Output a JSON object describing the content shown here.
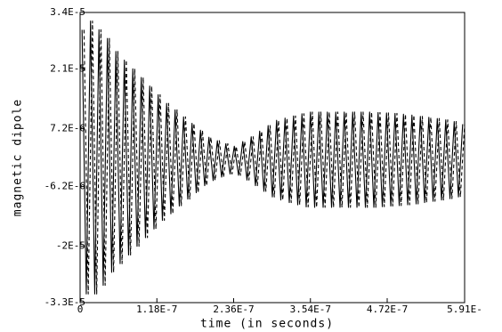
{
  "chart_data": {
    "type": "line",
    "x_label": "time (in seconds)",
    "y_label": "magnetic dipole",
    "xlim": [
      0,
      5.91e-07
    ],
    "ylim": [
      -3.3e-05,
      3.4e-05
    ],
    "xticks": [
      0,
      {
        "value": 1.18e-07,
        "label": "1.18E-7"
      },
      {
        "value": 2.36e-07,
        "label": "2.36E-7"
      },
      {
        "value": 3.54e-07,
        "label": "3.54E-7"
      },
      {
        "value": 4.72e-07,
        "label": "4.72E-7"
      },
      {
        "value": 5.91e-07,
        "label": "5.91E-"
      }
    ],
    "yticks": [
      {
        "value": 3.4e-05,
        "label": "3.4E-5"
      },
      {
        "value": 2.1e-05,
        "label": "2.1E-5"
      },
      {
        "value": 7.2e-06,
        "label": "7.2E-6"
      },
      {
        "value": -6.2e-06,
        "label": "-6.2E-6"
      },
      {
        "value": -2e-05,
        "label": "-2E-5"
      },
      {
        "value": -3.3e-05,
        "label": "-3.3E-5"
      }
    ],
    "grid": false,
    "series": [
      {
        "color": "#000000",
        "line_style": "solid",
        "x": [
          3e-09,
          9.5e-09,
          1.6e-08,
          2.25e-08,
          2.9e-08,
          3.55e-08,
          4.2e-08,
          4.85e-08,
          5.5e-08,
          6.15e-08,
          6.8e-08,
          7.45e-08,
          8.1e-08,
          8.75e-08,
          9.4e-08,
          1.005e-07,
          1.07e-07,
          1.135e-07,
          1.2e-07,
          1.265e-07,
          1.33e-07,
          1.395e-07,
          1.46e-07,
          1.525e-07,
          1.59e-07,
          1.655e-07,
          1.72e-07,
          1.785e-07,
          1.85e-07,
          1.915e-07,
          1.98e-07,
          2.045e-07,
          2.11e-07,
          2.175e-07,
          2.24e-07,
          2.305e-07,
          2.37e-07,
          2.435e-07,
          2.5e-07,
          2.565e-07,
          2.63e-07,
          2.695e-07,
          2.76e-07,
          2.825e-07,
          2.89e-07,
          2.955e-07,
          3.02e-07,
          3.085e-07,
          3.15e-07,
          3.215e-07,
          3.28e-07,
          3.345e-07,
          3.41e-07,
          3.475e-07,
          3.54e-07,
          3.605e-07,
          3.67e-07,
          3.735e-07,
          3.8e-07,
          3.865e-07,
          3.93e-07,
          3.995e-07,
          4.06e-07,
          4.125e-07,
          4.19e-07,
          4.255e-07,
          4.32e-07,
          4.385e-07,
          4.45e-07,
          4.515e-07,
          4.58e-07,
          4.645e-07,
          4.71e-07,
          4.775e-07,
          4.84e-07,
          4.905e-07,
          4.97e-07,
          5.035e-07,
          5.1e-07,
          5.165e-07,
          5.23e-07,
          5.295e-07,
          5.36e-07,
          5.425e-07,
          5.49e-07,
          5.555e-07,
          5.62e-07,
          5.685e-07,
          5.75e-07,
          5.815e-07,
          5.88e-07
        ],
        "values": [
          3e-05,
          -3.1e-05,
          3.2e-05,
          -3.1e-05,
          3e-05,
          -2.9e-05,
          2.8e-05,
          -2.6e-05,
          2.5e-05,
          -2.4e-05,
          2.3e-05,
          -2.2e-05,
          2.1e-05,
          -2e-05,
          1.9e-05,
          -1.8e-05,
          1.7e-05,
          -1.6e-05,
          1.5e-05,
          -1.4e-05,
          1.3e-05,
          -1.25e-05,
          1.15e-05,
          -1.07e-05,
          9.9e-06,
          -9.1e-06,
          8.4e-06,
          -7.6e-06,
          6.8e-06,
          -6e-06,
          5.2e-06,
          -4.8e-06,
          4.4e-06,
          -4e-06,
          3.7e-06,
          -3.3e-06,
          3.1e-06,
          -3.6e-06,
          4.2e-06,
          -4.7e-06,
          5.3e-06,
          -6e-06,
          6.6e-06,
          -7.3e-06,
          7.9e-06,
          -8.6e-06,
          9.1e-06,
          -9.3e-06,
          9.6e-06,
          -9.9e-06,
          1.01e-05,
          -1.04e-05,
          1.06e-05,
          -1.09e-05,
          1.1e-05,
          -1.1e-05,
          1.1e-05,
          -1.1e-05,
          1.1e-05,
          -1.1e-05,
          1.1e-05,
          -1.1e-05,
          1.1e-05,
          -1.1e-05,
          1.1e-05,
          -1.1e-05,
          1.1e-05,
          -1.1e-05,
          1.1e-05,
          -1.1e-05,
          1.09e-05,
          -1.085e-05,
          1.08e-05,
          -1.07e-05,
          1.07e-05,
          -1.06e-05,
          1.05e-05,
          -1.04e-05,
          1.03e-05,
          -1.02e-05,
          1e-05,
          -9.9e-06,
          9.8e-06,
          -9.6e-06,
          9.5e-06,
          -9.3e-06,
          9.2e-06,
          -9e-06,
          8.8e-06,
          -8.6e-06,
          8.2e-06
        ]
      },
      {
        "color": "#000000",
        "line_style": "dashed",
        "x": [
          6e-09,
          1.25e-08,
          1.9e-08,
          2.55e-08,
          3.2e-08,
          3.85e-08,
          4.5e-08,
          5.15e-08,
          5.8e-08,
          6.45e-08,
          7.1e-08,
          7.75e-08,
          8.4e-08,
          9.05e-08,
          9.7e-08,
          1.035e-07,
          1.1e-07,
          1.165e-07,
          1.23e-07,
          1.295e-07,
          1.36e-07,
          1.425e-07,
          1.49e-07,
          1.555e-07,
          1.62e-07,
          1.685e-07,
          1.75e-07,
          1.815e-07,
          1.88e-07,
          1.945e-07,
          2.01e-07,
          2.075e-07,
          2.14e-07,
          2.205e-07,
          2.27e-07,
          2.335e-07,
          2.4e-07,
          2.465e-07,
          2.53e-07,
          2.595e-07,
          2.66e-07,
          2.725e-07,
          2.79e-07,
          2.855e-07,
          2.92e-07,
          2.985e-07,
          3.05e-07,
          3.115e-07,
          3.18e-07,
          3.245e-07,
          3.31e-07,
          3.375e-07,
          3.44e-07,
          3.505e-07,
          3.57e-07,
          3.635e-07,
          3.7e-07,
          3.765e-07,
          3.83e-07,
          3.895e-07,
          3.96e-07,
          4.025e-07,
          4.09e-07,
          4.155e-07,
          4.22e-07,
          4.285e-07,
          4.35e-07,
          4.415e-07,
          4.48e-07,
          4.545e-07,
          4.61e-07,
          4.675e-07,
          4.74e-07,
          4.805e-07,
          4.87e-07,
          4.935e-07,
          5e-07,
          5.065e-07,
          5.13e-07,
          5.195e-07,
          5.26e-07,
          5.325e-07,
          5.39e-07,
          5.455e-07,
          5.52e-07,
          5.585e-07,
          5.65e-07,
          5.715e-07,
          5.78e-07,
          5.845e-07,
          5.91e-07
        ],
        "values": [
          3e-05,
          -3.1e-05,
          3.2e-05,
          -3.1e-05,
          3e-05,
          -2.9e-05,
          2.8e-05,
          -2.6e-05,
          2.5e-05,
          -2.4e-05,
          2.3e-05,
          -2.2e-05,
          2.1e-05,
          -2e-05,
          1.9e-05,
          -1.8e-05,
          1.7e-05,
          -1.6e-05,
          1.5e-05,
          -1.4e-05,
          1.3e-05,
          -1.25e-05,
          1.15e-05,
          -1.07e-05,
          9.9e-06,
          -9.1e-06,
          8.4e-06,
          -7.6e-06,
          6.8e-06,
          -6e-06,
          5.2e-06,
          -4.8e-06,
          4.4e-06,
          -4e-06,
          3.7e-06,
          -3.3e-06,
          3.1e-06,
          -3.6e-06,
          4.2e-06,
          -4.7e-06,
          5.3e-06,
          -6e-06,
          6.6e-06,
          -7.3e-06,
          7.9e-06,
          -8.6e-06,
          9.1e-06,
          -9.3e-06,
          9.6e-06,
          -9.9e-06,
          1.01e-05,
          -1.04e-05,
          1.06e-05,
          -1.09e-05,
          1.1e-05,
          -1.1e-05,
          1.1e-05,
          -1.1e-05,
          1.1e-05,
          -1.1e-05,
          1.1e-05,
          -1.1e-05,
          1.1e-05,
          -1.1e-05,
          1.1e-05,
          -1.1e-05,
          1.1e-05,
          -1.1e-05,
          1.1e-05,
          -1.1e-05,
          1.09e-05,
          -1.085e-05,
          1.08e-05,
          -1.07e-05,
          1.07e-05,
          -1.06e-05,
          1.05e-05,
          -1.04e-05,
          1.03e-05,
          -1.02e-05,
          1e-05,
          -9.9e-06,
          9.8e-06,
          -9.6e-06,
          9.5e-06,
          -9.3e-06,
          9.2e-06,
          -9e-06,
          8.8e-06,
          -8.6e-06,
          8.2e-06
        ]
      }
    ]
  }
}
